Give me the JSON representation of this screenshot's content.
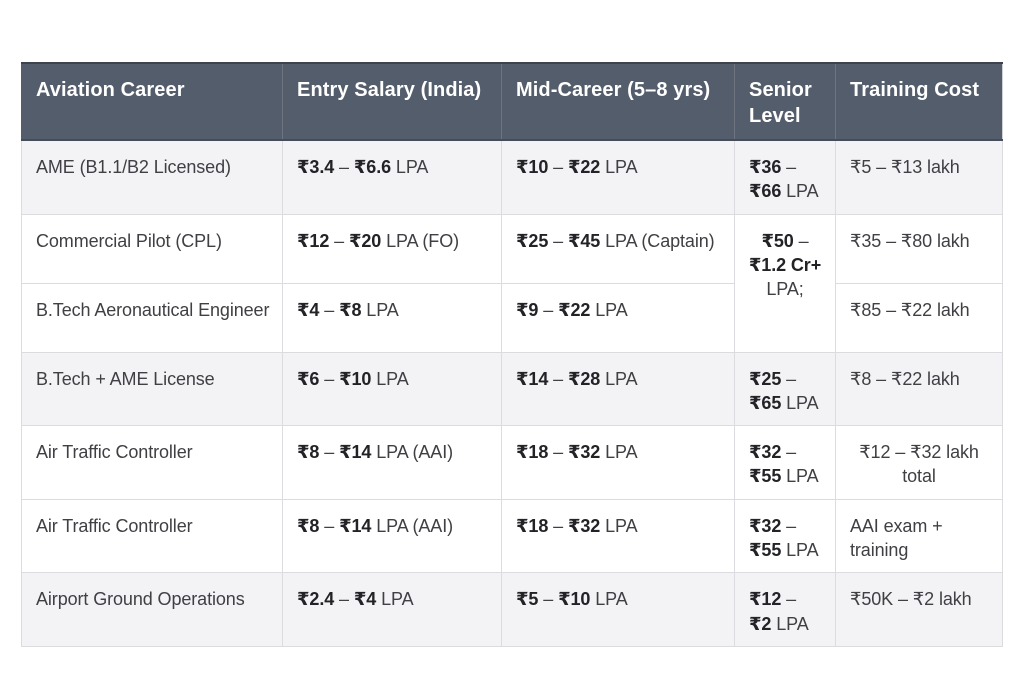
{
  "chart_data": {
    "type": "table",
    "columns": [
      "Aviation Career",
      "Entry Salary (India)",
      "Mid-Career (5–8 yrs)",
      "Senior Level",
      "Training Cost"
    ],
    "rows": [
      [
        "AME (B1.1/B2 Licensed)",
        "₹3.4 – ₹6.6 LPA",
        "₹10 – ₹22 LPA",
        "₹36 – ₹66 LPA",
        "₹5 – ₹13 lakh"
      ],
      [
        "Commercial Pilot (CPL)",
        "₹12 – ₹20 LPA (FO)",
        "₹25 – ₹45 LPA (Captain)",
        "₹50 – ₹1.2 Cr+ LPA;",
        "₹35 – ₹80 lakh"
      ],
      [
        "B.Tech Aeronautical Engineer",
        "₹4 – ₹8 LPA",
        "₹9 – ₹22 LPA",
        "",
        "₹85 – ₹22 lakh"
      ],
      [
        "B.Tech + AME License",
        "₹6 – ₹10 LPA",
        "₹14 – ₹28 LPA",
        "₹25 – ₹65 LPA",
        "₹8 – ₹22 lakh"
      ],
      [
        "Air Traffic Controller",
        "₹8 – ₹14 LPA (AAI)",
        "₹18 – ₹32 LPA",
        "₹32 – ₹55 LPA",
        "₹12 – ₹32 lakh total"
      ],
      [
        "Air Traffic Controller",
        "₹8 – ₹14 LPA (AAI)",
        "₹18 – ₹32 LPA",
        "₹32 – ₹55 LPA",
        "AAI exam + training"
      ],
      [
        "Airport Ground Operations",
        "₹2.4 – ₹4 LPA",
        "₹5 – ₹10 LPA",
        "₹12 – ₹2 LPA",
        "₹50K – ₹2 lakh"
      ]
    ],
    "merged_cell": {
      "column": "Senior Level",
      "spans_row_indexes": [
        1,
        2
      ],
      "value": "₹50 – ₹1.2 Cr+ LPA;"
    },
    "layout_hints": {
      "zebra_rows_indexes": [
        0,
        3,
        6
      ],
      "grid": true
    }
  },
  "colors": {
    "header_bg": "#545d6b",
    "header_text": "#ffffff",
    "header_top_edge": "#3c434f",
    "row_alt_bg": "#f3f3f6",
    "row_bg": "#ffffff",
    "border": "#dcdce0",
    "body_text": "#3f3f44",
    "number_text": "#232327"
  }
}
